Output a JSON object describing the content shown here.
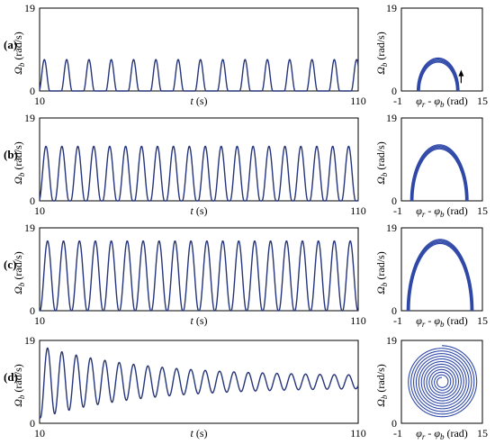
{
  "figure": {
    "colors": {
      "time_series_line": "#26357a",
      "phase_line": "#2f48a8",
      "arrow": "#000000"
    }
  },
  "chart_data": [
    {
      "type": "line",
      "panel": "(a)",
      "panel_label": "(a)",
      "xlabel": "t (s)",
      "ylabel_symbol": "Ω",
      "ylabel_sub": "b",
      "ylabel_unit": " (rad/s)",
      "xlim": [
        10,
        110
      ],
      "ylim": [
        0,
        19
      ],
      "x_ticks": [
        "10",
        "110"
      ],
      "y_ticks": [
        "0",
        "19"
      ],
      "behavior": "periodic pulses, zero baseline",
      "pulse_peak": 7.2,
      "pulse_width_s": 3.4,
      "first_peak_t": 11.5,
      "period_s": 7.0
    },
    {
      "type": "line",
      "panel": "(a)-phase",
      "xlabel_1": "φ",
      "xlabel_1_sub": "r",
      "xlabel_2": " - φ",
      "xlabel_2_sub": "b",
      "xlabel_unit": " (rad)",
      "ylabel_symbol": "Ω",
      "ylabel_sub": "b",
      "ylabel_unit": " (rad/s)",
      "xlim": [
        -1,
        15
      ],
      "ylim": [
        0,
        19
      ],
      "x_ticks": [
        "-1",
        "15"
      ],
      "y_ticks": [
        "0",
        "19"
      ],
      "loop": {
        "x_min": 2.3,
        "x_max": 10.2,
        "y_max": 7.2
      },
      "arrow": "counter-clockwise, at right side pointing up"
    },
    {
      "type": "line",
      "panel": "(b)",
      "panel_label": "(b)",
      "xlabel": "t (s)",
      "ylabel_symbol": "Ω",
      "ylabel_sub": "b",
      "ylabel_unit": " (rad/s)",
      "xlim": [
        10,
        110
      ],
      "ylim": [
        0,
        19
      ],
      "x_ticks": [
        "10",
        "110"
      ],
      "y_ticks": [
        "0",
        "19"
      ],
      "behavior": "periodic pulses, zero baseline",
      "pulse_peak": 12.5,
      "pulse_width_s": 4.4,
      "first_peak_t": 12.0,
      "period_s": 5.0
    },
    {
      "type": "line",
      "panel": "(b)-phase",
      "xlabel_1": "φ",
      "xlabel_1_sub": "r",
      "xlabel_2": " - φ",
      "xlabel_2_sub": "b",
      "xlabel_unit": " (rad)",
      "ylabel_symbol": "Ω",
      "ylabel_sub": "b",
      "ylabel_unit": " (rad/s)",
      "xlim": [
        -1,
        15
      ],
      "ylim": [
        0,
        19
      ],
      "x_ticks": [
        "-1",
        "15"
      ],
      "y_ticks": [
        "0",
        "19"
      ],
      "loop": {
        "x_min": 1.0,
        "x_max": 12.0,
        "y_max": 12.5
      }
    },
    {
      "type": "line",
      "panel": "(c)",
      "panel_label": "(c)",
      "xlabel": "t (s)",
      "ylabel_symbol": "Ω",
      "ylabel_sub": "b",
      "ylabel_unit": " (rad/s)",
      "xlim": [
        10,
        110
      ],
      "ylim": [
        0,
        19
      ],
      "x_ticks": [
        "10",
        "110"
      ],
      "y_ticks": [
        "0",
        "19"
      ],
      "behavior": "periodic oscillation, zero baseline",
      "pulse_peak": 16.0,
      "pulse_width_s": 4.8,
      "first_peak_t": 12.5,
      "period_s": 5.0
    },
    {
      "type": "line",
      "panel": "(c)-phase",
      "xlabel_1": "φ",
      "xlabel_1_sub": "r",
      "xlabel_2": " - φ",
      "xlabel_2_sub": "b",
      "xlabel_unit": " (rad)",
      "ylabel_symbol": "Ω",
      "ylabel_sub": "b",
      "ylabel_unit": " (rad/s)",
      "xlim": [
        -1,
        15
      ],
      "ylim": [
        0,
        19
      ],
      "x_ticks": [
        "-1",
        "15"
      ],
      "y_ticks": [
        "0",
        "19"
      ],
      "loop": {
        "x_min": 0.3,
        "x_max": 13.0,
        "y_max": 16.0
      }
    },
    {
      "type": "line",
      "panel": "(d)",
      "panel_label": "(d)",
      "xlabel": "t (s)",
      "ylabel_symbol": "Ω",
      "ylabel_sub": "b",
      "ylabel_unit": " (rad/s)",
      "xlim": [
        10,
        110
      ],
      "ylim": [
        0,
        19
      ],
      "x_ticks": [
        "10",
        "110"
      ],
      "y_ticks": [
        "0",
        "19"
      ],
      "behavior": "damped oscillation converging to constant value",
      "center_value": 9.5,
      "initial_amplitude": 8.3,
      "final_amplitude": 1.3,
      "period_s": 4.5,
      "first_peak_t": 12.5
    },
    {
      "type": "line",
      "panel": "(d)-phase",
      "xlabel_1": "φ",
      "xlabel_1_sub": "r",
      "xlabel_2": " - φ",
      "xlabel_2_sub": "b",
      "xlabel_unit": " (rad)",
      "ylabel_symbol": "Ω",
      "ylabel_sub": "b",
      "ylabel_unit": " (rad/s)",
      "xlim": [
        -1,
        15
      ],
      "ylim": [
        0,
        19
      ],
      "x_ticks": [
        "-1",
        "15"
      ],
      "y_ticks": [
        "0",
        "19"
      ],
      "spiral": {
        "center_x": 7.0,
        "center_y": 9.5,
        "turns": 12,
        "outer_radius_y": 8.3
      }
    }
  ]
}
